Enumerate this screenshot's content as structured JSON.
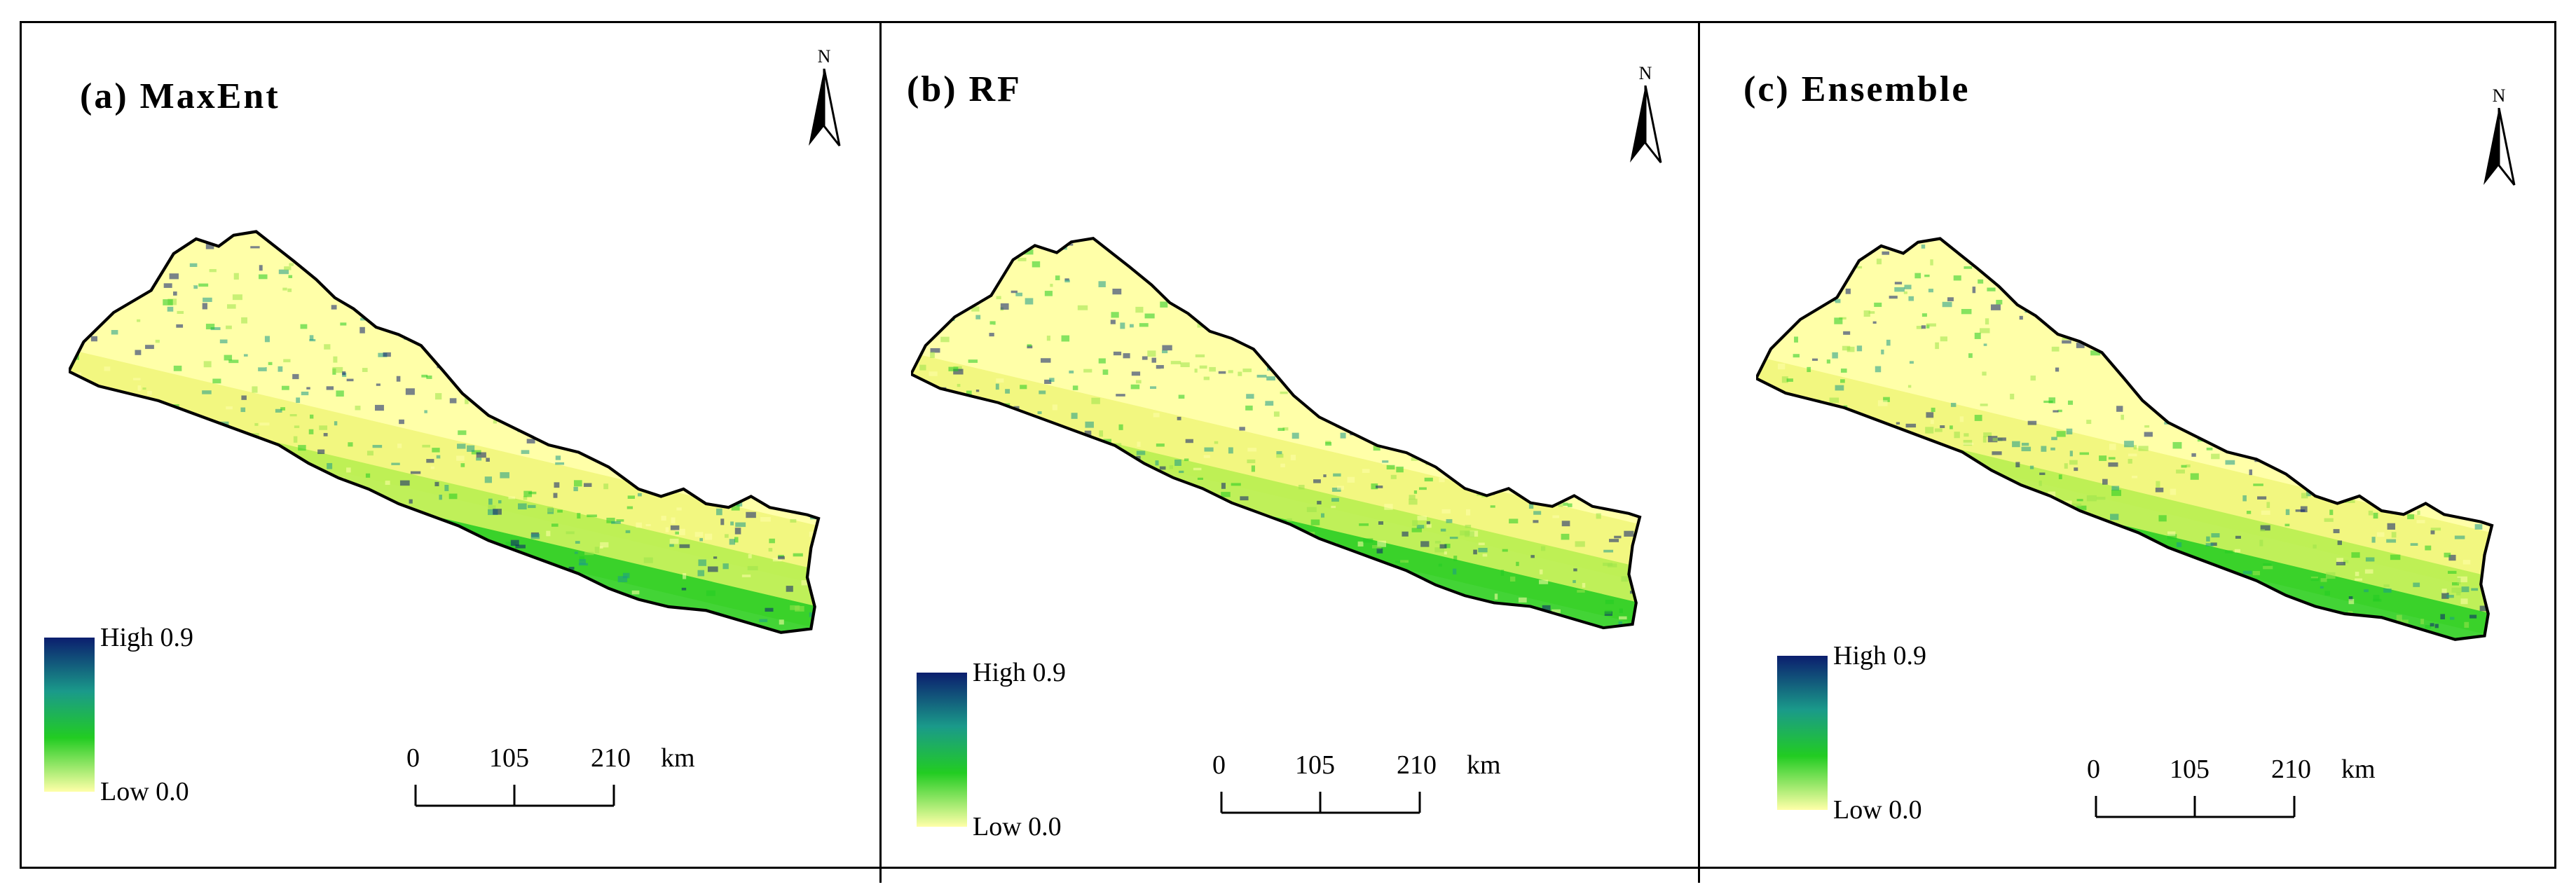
{
  "panels": [
    {
      "title": "(a) MaxEnt",
      "north_label": "N",
      "legend": {
        "high": "High 0.9",
        "low": "Low 0.0"
      },
      "scale": {
        "ticks": [
          "0",
          "105",
          "210"
        ],
        "unit": "km"
      }
    },
    {
      "title": "(b) RF",
      "north_label": "N",
      "legend": {
        "high": "High 0.9",
        "low": "Low 0.0"
      },
      "scale": {
        "ticks": [
          "0",
          "105",
          "210"
        ],
        "unit": "km"
      }
    },
    {
      "title": "(c) Ensemble",
      "north_label": "N",
      "legend": {
        "high": "High 0.9",
        "low": "Low 0.0"
      },
      "scale": {
        "ticks": [
          "0",
          "105",
          "210"
        ],
        "unit": "km"
      }
    }
  ],
  "colors": {
    "low": "#ffffa8",
    "mid": "#22cc22",
    "mid_high": "#1a9a8a",
    "high": "#0b1e6e"
  }
}
